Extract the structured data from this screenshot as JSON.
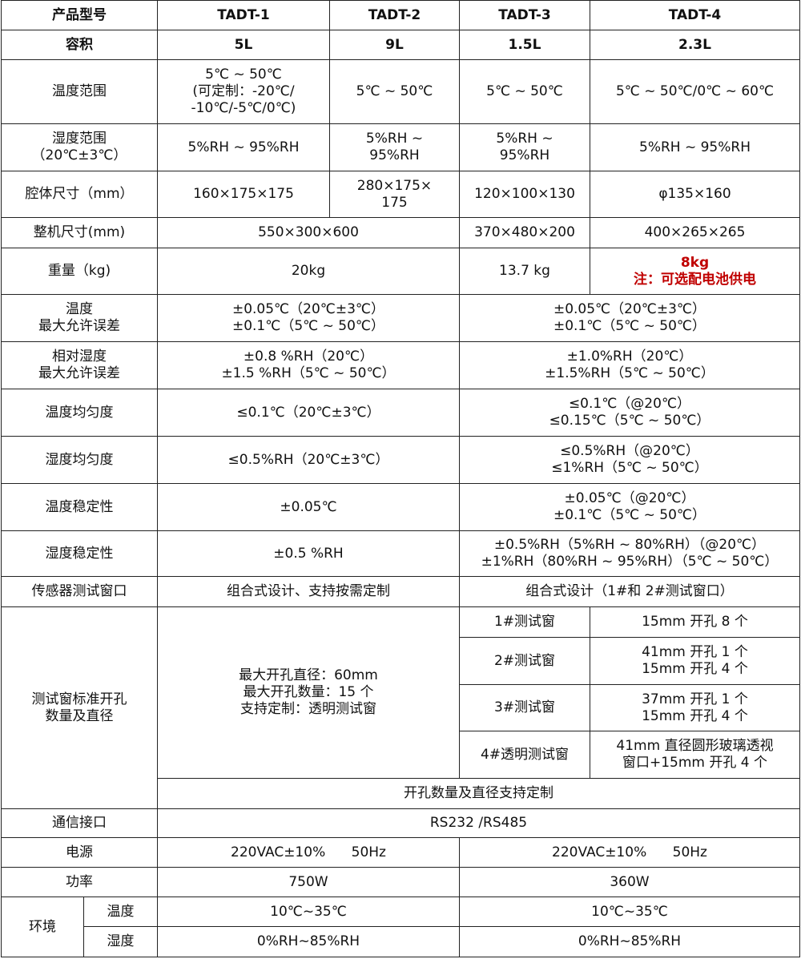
{
  "header": {
    "label": "产品型号",
    "models": [
      "TADT-1",
      "TADT-2",
      "TADT-3",
      "TADT-4"
    ]
  },
  "volume": {
    "label": "容积",
    "values": [
      "5L",
      "9L",
      "1.5L",
      "2.3L"
    ]
  },
  "temp_range": {
    "label": "温度范围",
    "values": [
      "5℃ ~ 50℃\n(可定制：-20℃/\n-10℃/-5℃/0℃)",
      "5℃ ~ 50℃",
      "5℃ ~ 50℃",
      "5℃ ~ 50℃/0℃ ~ 60℃"
    ]
  },
  "hum_range": {
    "label": "湿度范围\n（20℃±3℃）",
    "values": [
      "5%RH ~ 95%RH",
      "5%RH ~\n95%RH",
      "5%RH  ~\n95%RH",
      "5%RH  ~ 95%RH"
    ]
  },
  "chamber_size": {
    "label": "腔体尺寸（mm）",
    "values": [
      "160×175×175",
      "280×175×\n175",
      "120×100×130",
      "φ135×160"
    ]
  },
  "overall_size": {
    "label": "整机尺寸(mm)",
    "values": [
      "550×300×600",
      "370×480×200",
      "400×265×265"
    ]
  },
  "weight": {
    "label": "重量（kg)",
    "values": [
      "20kg",
      "13.7 kg",
      "8kg\n注：可选配电池供电"
    ]
  },
  "temp_error": {
    "label": "温度\n最大允许误差",
    "values": [
      "±0.05℃（20℃±3℃）\n±0.1℃（5℃ ~ 50℃）",
      "±0.05℃（20℃±3℃）\n±0.1℃（5℃ ~ 50℃）"
    ]
  },
  "hum_error": {
    "label": "相对湿度\n最大允许误差",
    "values": [
      "±0.8 %RH（20℃）\n±1.5 %RH（5℃ ~ 50℃）",
      "±1.0%RH（20℃）\n±1.5%RH（5℃ ~ 50℃）"
    ]
  },
  "temp_uniformity": {
    "label": "温度均匀度",
    "values": [
      "≤0.1℃（20℃±3℃）",
      "≤0.1℃（@20℃）\n≤0.15℃（5℃ ~ 50℃）"
    ]
  },
  "hum_uniformity": {
    "label": "湿度均匀度",
    "values": [
      "≤0.5%RH（20℃±3℃）",
      "≤0.5%RH（@20℃）\n≤1%RH（5℃ ~ 50℃）"
    ]
  },
  "temp_stability": {
    "label": "温度稳定性",
    "values": [
      "±0.05℃",
      "±0.05℃（@20℃）\n±0.1℃（5℃ ~ 50℃）"
    ]
  },
  "hum_stability": {
    "label": "湿度稳定性",
    "values": [
      "±0.5 %RH",
      "±0.5%RH（5%RH ~ 80%RH）（@20℃）\n±1%RH（80%RH ~ 95%RH）（5℃ ~ 50℃）"
    ]
  },
  "sensor_window": {
    "label": "传感器测试窗口",
    "values": [
      "组合式设计、支持按需定制",
      "组合式设计（1#和 2#测试窗口）"
    ]
  },
  "test_window": {
    "label": "测试窗标准开孔\n数量及直径",
    "left": "最大开孔直径：60mm\n最大开孔数量：15 个\n支持定制：透明测试窗",
    "windows": [
      {
        "name": "1#测试窗",
        "spec": "15mm 开孔 8 个"
      },
      {
        "name": "2#测试窗",
        "spec": "41mm 开孔 1 个\n15mm 开孔 4 个"
      },
      {
        "name": "3#测试窗",
        "spec": "37mm 开孔 1 个\n15mm 开孔 4 个"
      },
      {
        "name": "4#透明测试窗",
        "spec": "41mm 直径圆形玻璃透视\n窗口+15mm 开孔 4 个"
      }
    ],
    "footer": "开孔数量及直径支持定制"
  },
  "comm": {
    "label": "通信接口",
    "value": "RS232 /RS485"
  },
  "power_supply": {
    "label": "电源",
    "values": [
      "220VAC±10%      50Hz",
      "220VAC±10%      50Hz"
    ]
  },
  "power": {
    "label": "功率",
    "values": [
      "750W",
      "360W"
    ]
  },
  "env": {
    "label": "环境",
    "temp_label": "温度",
    "temp_values": [
      "10℃~35℃",
      "10℃~35℃"
    ],
    "hum_label": "湿度",
    "hum_values": [
      "0%RH~85%RH",
      "0%RH~85%RH"
    ]
  },
  "colors": {
    "note": "#c00000",
    "border": "#222222"
  }
}
